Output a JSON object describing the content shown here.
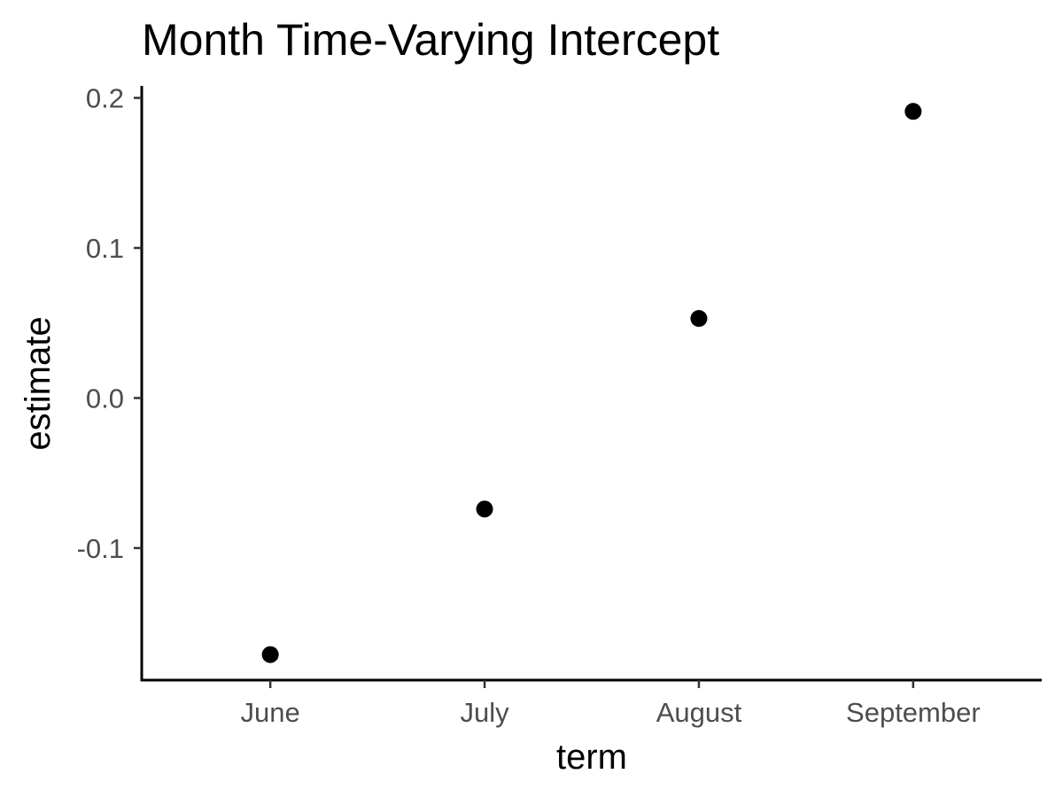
{
  "chart_data": {
    "type": "scatter",
    "title": "Month Time-Varying Intercept",
    "xlabel": "term",
    "ylabel": "estimate",
    "categories": [
      "June",
      "July",
      "August",
      "September"
    ],
    "series": [
      {
        "values": [
          -0.171,
          -0.074,
          0.053,
          0.191
        ]
      }
    ],
    "yticks": [
      -0.1,
      0.0,
      0.1,
      0.2
    ],
    "ytick_labels": [
      "-0.1",
      "0.0",
      "0.1",
      "0.2"
    ],
    "ylim": [
      -0.188,
      0.208
    ],
    "grid": false,
    "legend": "none",
    "point_color": "#000000",
    "tick_label_color": "#4d4d4d"
  }
}
